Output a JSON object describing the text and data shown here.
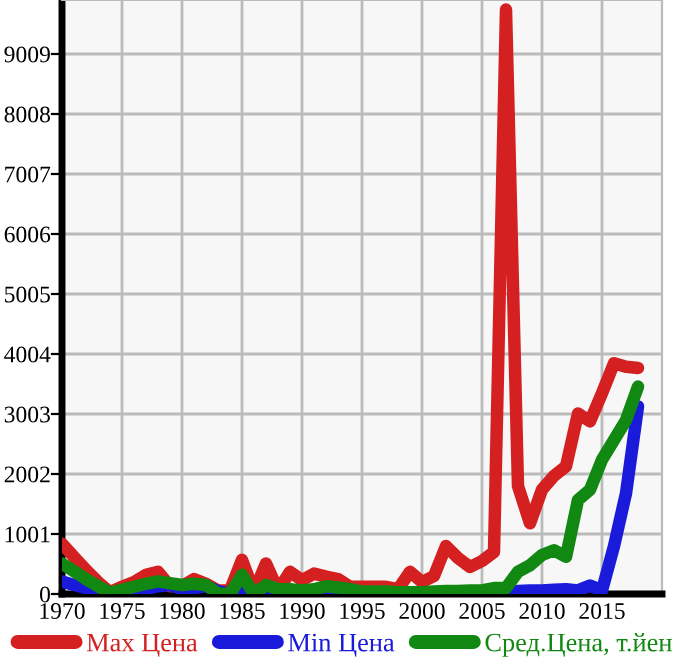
{
  "chart_data": {
    "type": "line",
    "x": [
      1970,
      1971,
      1972,
      1973,
      1974,
      1975,
      1976,
      1977,
      1978,
      1979,
      1980,
      1981,
      1982,
      1983,
      1984,
      1985,
      1986,
      1987,
      1988,
      1989,
      1990,
      1991,
      1992,
      1993,
      1994,
      1995,
      1996,
      1997,
      1998,
      1999,
      2000,
      2001,
      2002,
      2003,
      2004,
      2005,
      2006,
      2007,
      2008,
      2009,
      2010,
      2011,
      2012,
      2013,
      2014,
      2015,
      2016,
      2017,
      2018
    ],
    "series": [
      {
        "name": "Max Цена",
        "color": "#d42020",
        "values": [
          840,
          620,
          400,
          200,
          30,
          120,
          200,
          320,
          370,
          130,
          130,
          250,
          170,
          60,
          60,
          570,
          30,
          510,
          60,
          370,
          230,
          340,
          290,
          250,
          120,
          120,
          120,
          120,
          80,
          370,
          200,
          300,
          800,
          600,
          450,
          550,
          700,
          9750,
          1800,
          1180,
          1740,
          1970,
          2130,
          3010,
          2880,
          3350,
          3850,
          3790,
          3770
        ]
      },
      {
        "name": "Min Цена",
        "color": "#1a1adb",
        "values": [
          210,
          150,
          100,
          50,
          0,
          20,
          40,
          80,
          130,
          150,
          80,
          100,
          130,
          50,
          0,
          120,
          0,
          30,
          20,
          10,
          10,
          20,
          20,
          20,
          10,
          20,
          20,
          20,
          20,
          20,
          20,
          20,
          20,
          20,
          20,
          20,
          20,
          30,
          50,
          60,
          60,
          70,
          80,
          60,
          140,
          60,
          800,
          1680,
          3130
        ]
      },
      {
        "name": "Сред.Цена, т.йен",
        "color": "#118811",
        "values": [
          510,
          380,
          250,
          130,
          20,
          70,
          120,
          170,
          210,
          180,
          150,
          170,
          150,
          10,
          0,
          320,
          0,
          150,
          80,
          80,
          60,
          80,
          130,
          110,
          80,
          40,
          40,
          40,
          30,
          30,
          30,
          40,
          50,
          50,
          60,
          60,
          100,
          100,
          370,
          480,
          650,
          730,
          620,
          1570,
          1740,
          2240,
          2570,
          2900,
          3460
        ]
      }
    ],
    "xlim": [
      1970,
      2020
    ],
    "xticks": [
      1970,
      1975,
      1980,
      1985,
      1990,
      1995,
      2000,
      2005,
      2010,
      2015
    ],
    "ylim": [
      0,
      9910
    ],
    "yticks": [
      0,
      1001,
      2002,
      3003,
      4004,
      5005,
      6006,
      7007,
      8008,
      9009
    ],
    "grid": true,
    "legend": "bottom",
    "marker": "none",
    "line_style": "solid"
  }
}
